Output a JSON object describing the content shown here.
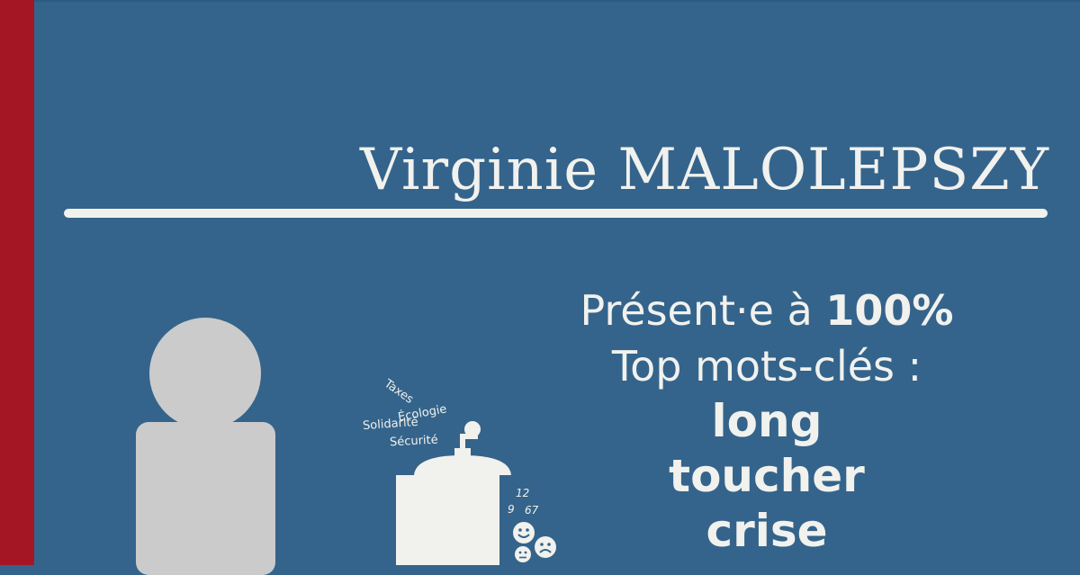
{
  "profile": {
    "name": "Virginie MALOLEPSZY"
  },
  "stats": {
    "presence_prefix": "Présent·e à ",
    "presence_value": "100%",
    "keywords_label": "Top mots-clés :",
    "keywords": [
      "long",
      "toucher",
      "crise"
    ]
  },
  "illustration": {
    "grinder_words": [
      "Taxes",
      "Écologie",
      "Solidarité",
      "Sécurité"
    ],
    "numbers": [
      "12",
      "9",
      "67"
    ],
    "faces": [
      "happy-face-icon",
      "sad-face-icon",
      "neutral-face-icon"
    ]
  },
  "colors": {
    "background": "#34648b",
    "accent_bar": "#a51625",
    "text": "#f1f1ee",
    "avatar": "#cbcbcb"
  }
}
